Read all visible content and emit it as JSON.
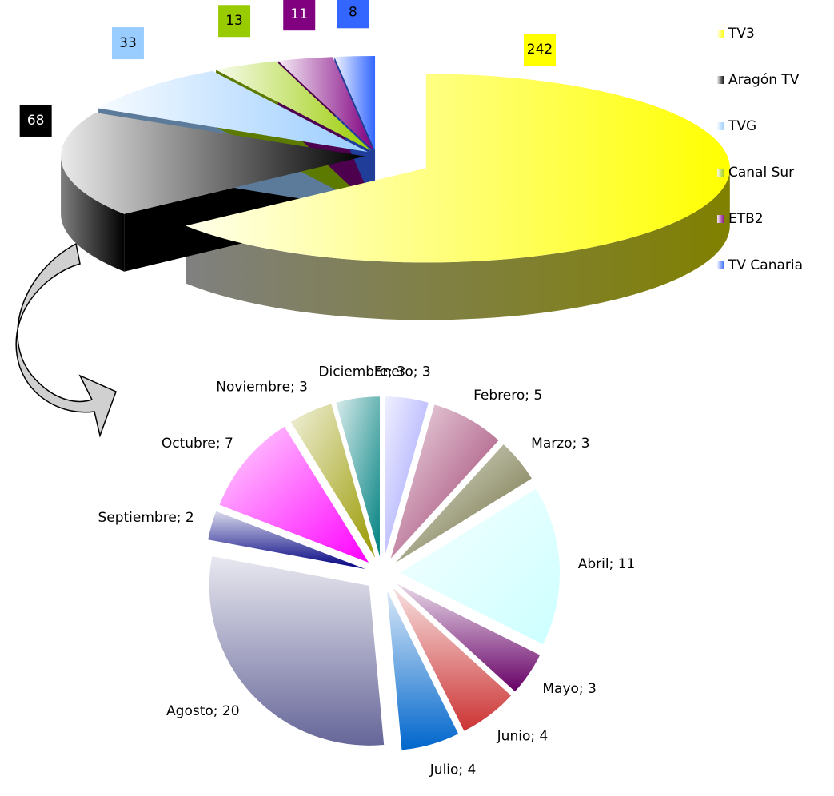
{
  "chart_data": [
    {
      "type": "pie3d",
      "categories": [
        "TV3",
        "Aragón TV",
        "TVG",
        "Canal Sur",
        "ETB2",
        "TV Canaria"
      ],
      "values": [
        242,
        68,
        33,
        13,
        11,
        8
      ],
      "colors": [
        "#ffff00",
        "#000000",
        "#99ccff",
        "#99cc00",
        "#800080",
        "#3366ff"
      ],
      "legend": "right"
    },
    {
      "type": "pie",
      "value_labels": [
        "Enero; 3",
        "Febrero; 5",
        "Marzo; 3",
        "Abril; 11",
        "Mayo; 3",
        "Junio; 4",
        "Julio; 4",
        "Agosto; 20",
        "Septiembre; 2",
        "Octubre; 7",
        "Noviembre; 3",
        "Diciembre; 3"
      ],
      "values": [
        3,
        5,
        3,
        11,
        3,
        4,
        4,
        20,
        2,
        7,
        3,
        3
      ],
      "colors": [
        "#9999ff",
        "#993366",
        "#666633",
        "#ccffff",
        "#660066",
        "#cc3333",
        "#0066cc",
        "#666699",
        "#000080",
        "#ff00ff",
        "#999900",
        "#008080"
      ]
    }
  ]
}
